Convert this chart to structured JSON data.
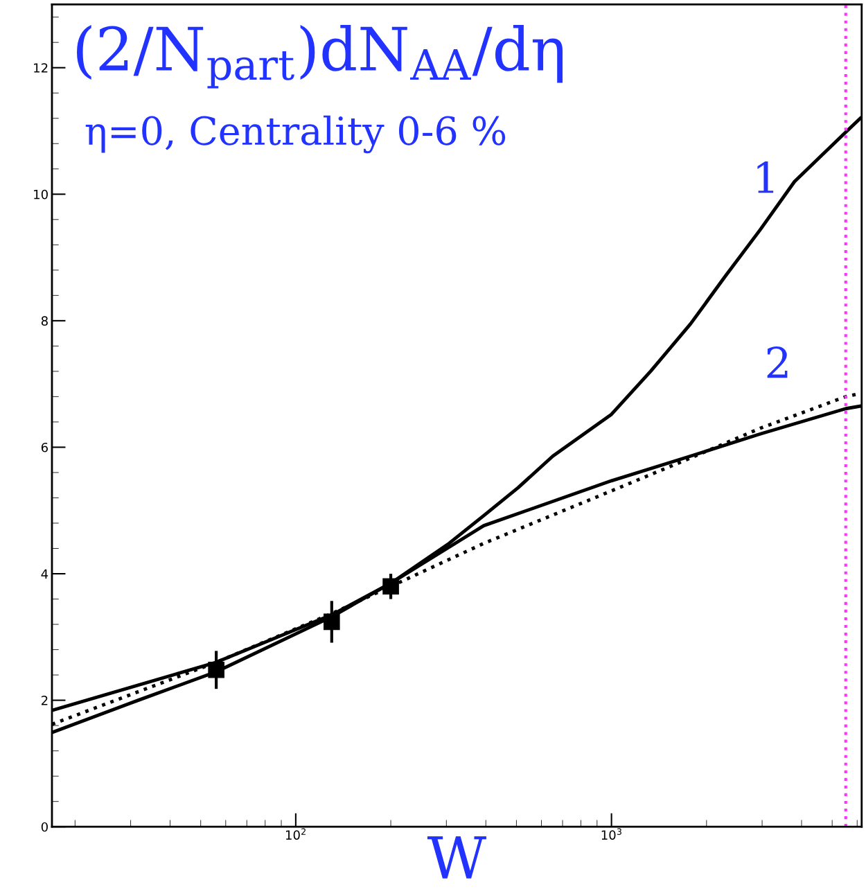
{
  "chart_data": {
    "type": "line",
    "xlabel": "W",
    "log": "x",
    "xlim": [
      16.9,
      6200
    ],
    "ylim": [
      0,
      13
    ],
    "xticks": [
      {
        "value": 100,
        "label": "10$^{2}$"
      },
      {
        "value": 1000,
        "label": "10$^{3}$"
      }
    ],
    "yticks": [
      0,
      2,
      4,
      6,
      8,
      10,
      12
    ],
    "grid": false,
    "annotations": [
      "(2/N$_{part}$)dN$_{AA}$/dη",
      "η=0, Centrality 0-6 %",
      "1",
      "2"
    ],
    "ref_lines": [
      {
        "axis": "x",
        "value": 5520,
        "label": null,
        "color": "#ff33ff",
        "line_style": "dotted"
      }
    ],
    "series": [
      {
        "color": "#000000",
        "line_style": "solid",
        "x": [
          16.9,
          31.7,
          56,
          130,
          200,
          306,
          394,
          506,
          652,
          1000,
          1330,
          1780,
          2290,
          2960,
          3800,
          4600,
          5520,
          6140
        ],
        "values": [
          1.49,
          2.0,
          2.45,
          3.32,
          3.85,
          4.48,
          4.92,
          5.36,
          5.86,
          6.52,
          7.2,
          7.95,
          8.7,
          9.44,
          10.2,
          10.6,
          10.98,
          11.2
        ]
      },
      {
        "color": "#000000",
        "line_style": "solid",
        "x": [
          16.9,
          56,
          130,
          200,
          394,
          1000,
          1780,
          2960,
          5520,
          6140
        ],
        "values": [
          1.84,
          2.6,
          3.35,
          3.85,
          4.76,
          5.47,
          5.86,
          6.21,
          6.61,
          6.65
        ]
      },
      {
        "color": "#000000",
        "line_style": "dotted",
        "x": [
          16.9,
          56,
          130,
          200,
          394,
          1000,
          1780,
          2960,
          5520,
          6140
        ],
        "values": [
          1.62,
          2.6,
          3.37,
          3.8,
          4.48,
          5.31,
          5.83,
          6.3,
          6.8,
          6.85
        ]
      },
      {
        "type": "scatter",
        "color": "#000000",
        "marker": "square",
        "x": [
          56,
          130,
          200
        ],
        "values": [
          2.48,
          3.24,
          3.8
        ],
        "errors": [
          0.3,
          0.33,
          0.2
        ]
      }
    ]
  }
}
